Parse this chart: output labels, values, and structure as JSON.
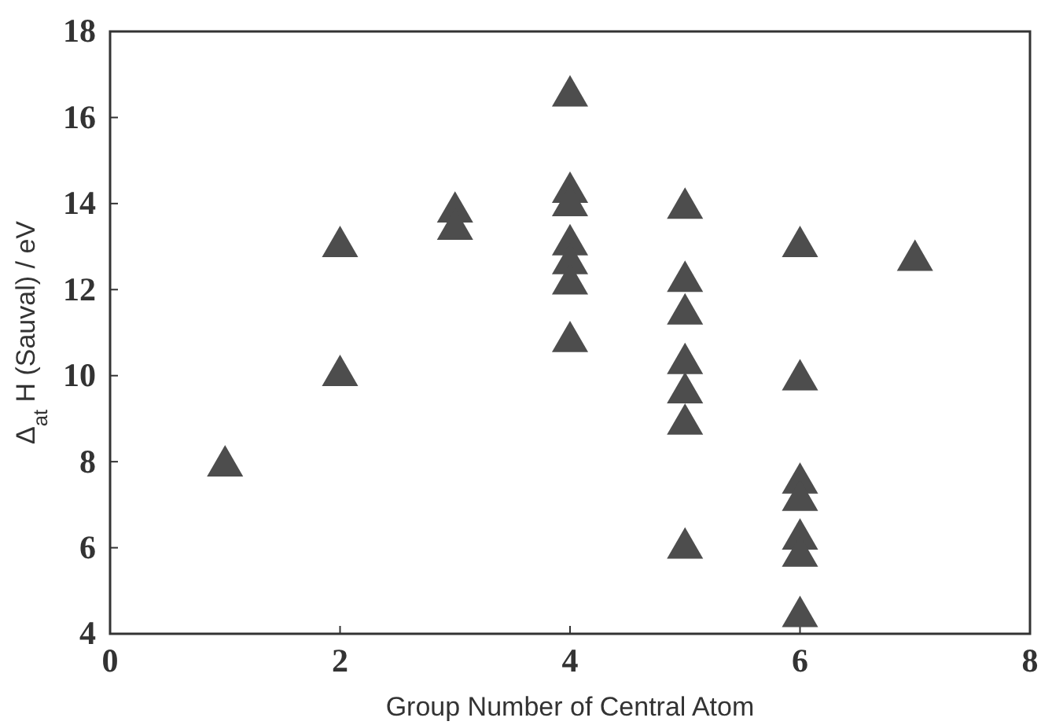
{
  "chart_data": {
    "type": "scatter",
    "xlabel": "Group Number of Central Atom",
    "ylabel": "Δ$_{at}$ H (Sauval) / eV",
    "x": [
      1,
      2,
      2,
      3,
      3,
      4,
      4,
      4,
      4,
      4,
      4,
      4,
      5,
      5,
      5,
      5,
      5,
      5,
      5,
      6,
      6,
      6,
      6,
      6,
      6,
      6,
      7
    ],
    "values": [
      7.9,
      13.0,
      10.0,
      13.8,
      13.4,
      16.5,
      14.26,
      13.95,
      13.04,
      12.6,
      12.13,
      10.79,
      13.89,
      12.19,
      11.43,
      10.28,
      9.6,
      8.87,
      5.99,
      13.0,
      9.9,
      7.5,
      7.1,
      6.2,
      5.8,
      4.4,
      12.68
    ],
    "color": "#4d4d4d",
    "marker": "triangle",
    "xlim": [
      0,
      8
    ],
    "xticks": [
      0,
      2,
      4,
      6,
      8
    ],
    "ylim": [
      4,
      18
    ],
    "yticks": [
      4,
      6,
      8,
      10,
      12,
      14,
      16,
      18
    ],
    "grid": false
  }
}
